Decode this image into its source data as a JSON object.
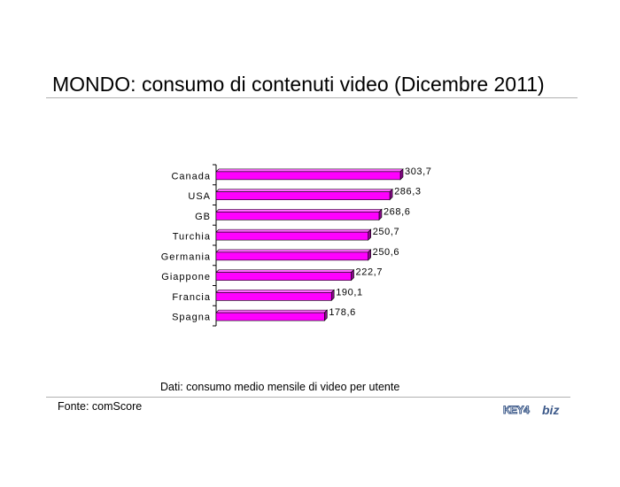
{
  "title": "MONDO: consumo di contenuti video (Dicembre 2011)",
  "note": "Dati: consumo medio mensile di video per utente",
  "source": "Fonte: comScore",
  "logo": {
    "text_key": "KEY4",
    "text_biz": "biz"
  },
  "colors": {
    "bar_fill": "#ff00ff",
    "bar_side": "#8a0a8a",
    "bar_top": "#ff66ff",
    "axis": "#000000",
    "logo": "#3d5a8a"
  },
  "chart_data": {
    "type": "bar",
    "orientation": "horizontal",
    "categories": [
      "Canada",
      "USA",
      "GB",
      "Turchia",
      "Germania",
      "Giappone",
      "Francia",
      "Spagna"
    ],
    "values": [
      303.7,
      286.3,
      268.6,
      250.7,
      250.6,
      222.7,
      190.1,
      178.6
    ],
    "value_labels": [
      "303,7",
      "286,3",
      "268,6",
      "250,7",
      "250,6",
      "222,7",
      "190,1",
      "178,6"
    ],
    "xlim": [
      0,
      303.7
    ],
    "grid": false,
    "legend": "none"
  }
}
